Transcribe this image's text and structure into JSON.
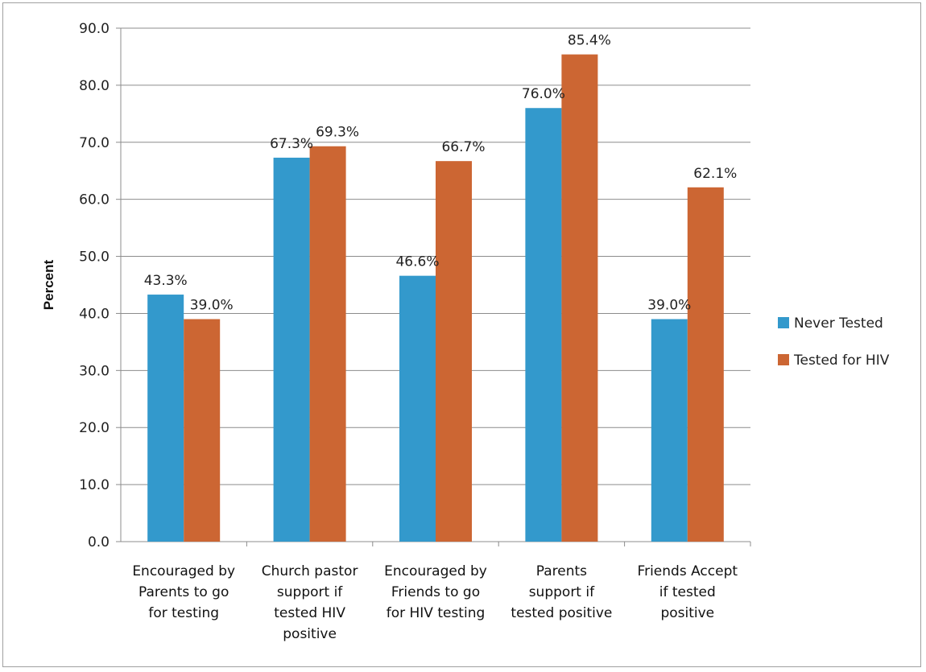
{
  "chart_data": {
    "type": "bar",
    "ylabel": "Percent",
    "ylim": [
      0,
      90
    ],
    "yticks": [
      "0.0",
      "10.0",
      "20.0",
      "30.0",
      "40.0",
      "50.0",
      "60.0",
      "70.0",
      "80.0",
      "90.0"
    ],
    "grid": true,
    "legend_position": "right",
    "categories": [
      [
        "Encouraged by",
        "Parents to go",
        "for testing"
      ],
      [
        "Church pastor",
        "support if",
        "tested HIV",
        "positive"
      ],
      [
        "Encouraged by",
        "Friends to go",
        "for HIV testing"
      ],
      [
        "Parents",
        "support if",
        "tested positive"
      ],
      [
        "Friends Accept",
        "if tested",
        "positive"
      ]
    ],
    "series": [
      {
        "name": "Never Tested",
        "color": "#3399CC",
        "values": [
          43.3,
          67.3,
          46.6,
          76.0,
          39.0
        ],
        "labels": [
          "43.3%",
          "67.3%",
          "46.6%",
          "76.0%",
          "39.0%"
        ]
      },
      {
        "name": "Tested for HIV",
        "color": "#CC6633",
        "values": [
          39.0,
          69.3,
          66.7,
          85.4,
          62.1
        ],
        "labels": [
          "39.0%",
          "69.3%",
          "66.7%",
          "85.4%",
          "62.1%"
        ]
      }
    ]
  }
}
